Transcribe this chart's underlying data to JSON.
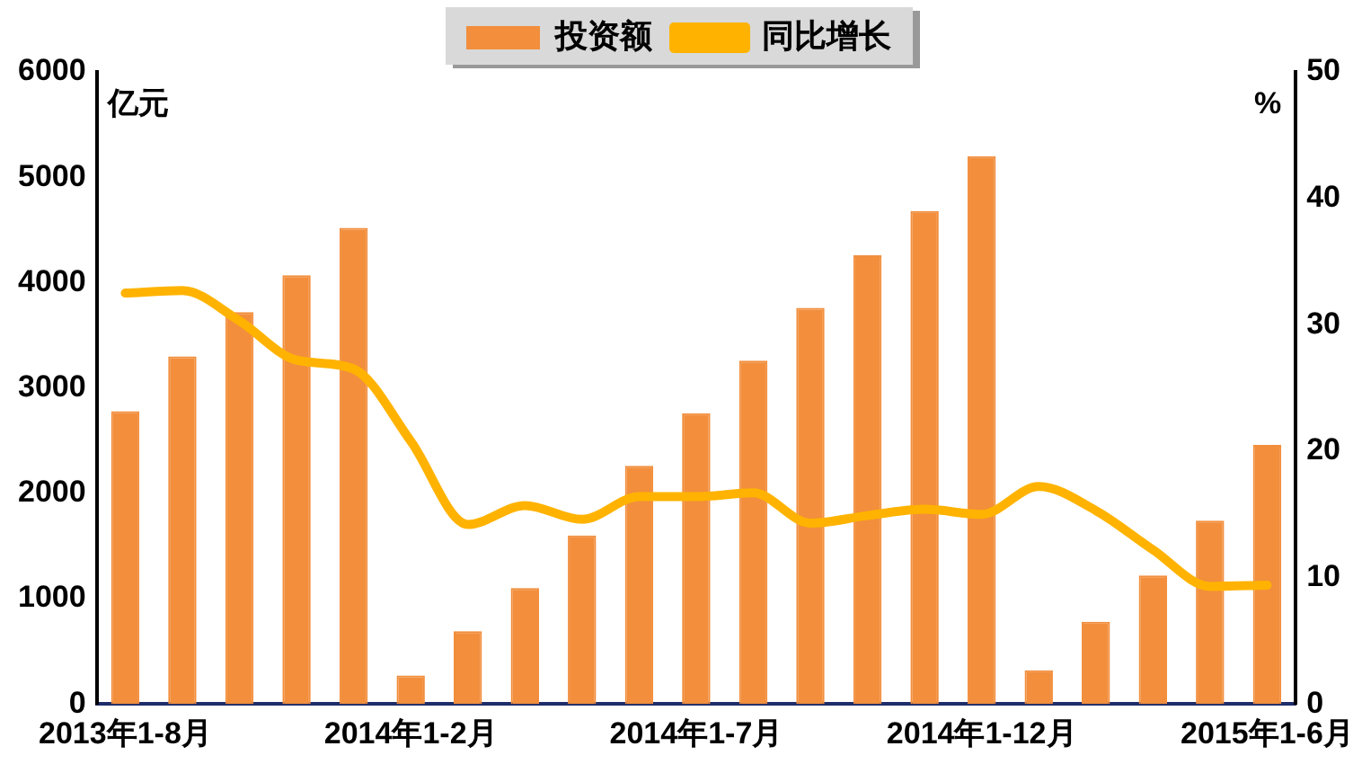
{
  "chart_data": {
    "type": "bar",
    "categories": [
      "2013年1-8月",
      null,
      null,
      null,
      null,
      "2014年1-2月",
      null,
      null,
      null,
      null,
      "2014年1-7月",
      null,
      null,
      null,
      null,
      "2014年1-12月",
      null,
      null,
      null,
      null,
      "2015年1-6月"
    ],
    "ylabel": "亿元",
    "y2label": "%",
    "series": [
      {
        "name": "投资额",
        "color": "#f28e3c",
        "values": [
          2780,
          3300,
          3720,
          4070,
          4520,
          270,
          690,
          1100,
          1600,
          2260,
          2760,
          3260,
          3760,
          4260,
          4680,
          5200,
          320,
          780,
          1220,
          1740,
          2460
        ]
      },
      {
        "name": "同比增长",
        "type": "line",
        "axis": "y2",
        "color": "#ffb300",
        "values": [
          32.5,
          32.7,
          30.3,
          27.2,
          26.5,
          20.8,
          14.2,
          15.7,
          14.6,
          16.4,
          16.4,
          16.7,
          14.3,
          14.9,
          15.4,
          15,
          17.2,
          15.3,
          12.2,
          9.3,
          9.4
        ]
      }
    ],
    "ylim": [
      0,
      6000
    ],
    "yticks": [
      0,
      1000,
      2000,
      3000,
      4000,
      5000,
      6000
    ],
    "y2lim": [
      0,
      50
    ],
    "y2ticks": [
      0,
      10,
      20,
      30,
      40,
      50
    ],
    "grid": false,
    "legend": "top",
    "marker": "none",
    "line_style": "solid"
  }
}
